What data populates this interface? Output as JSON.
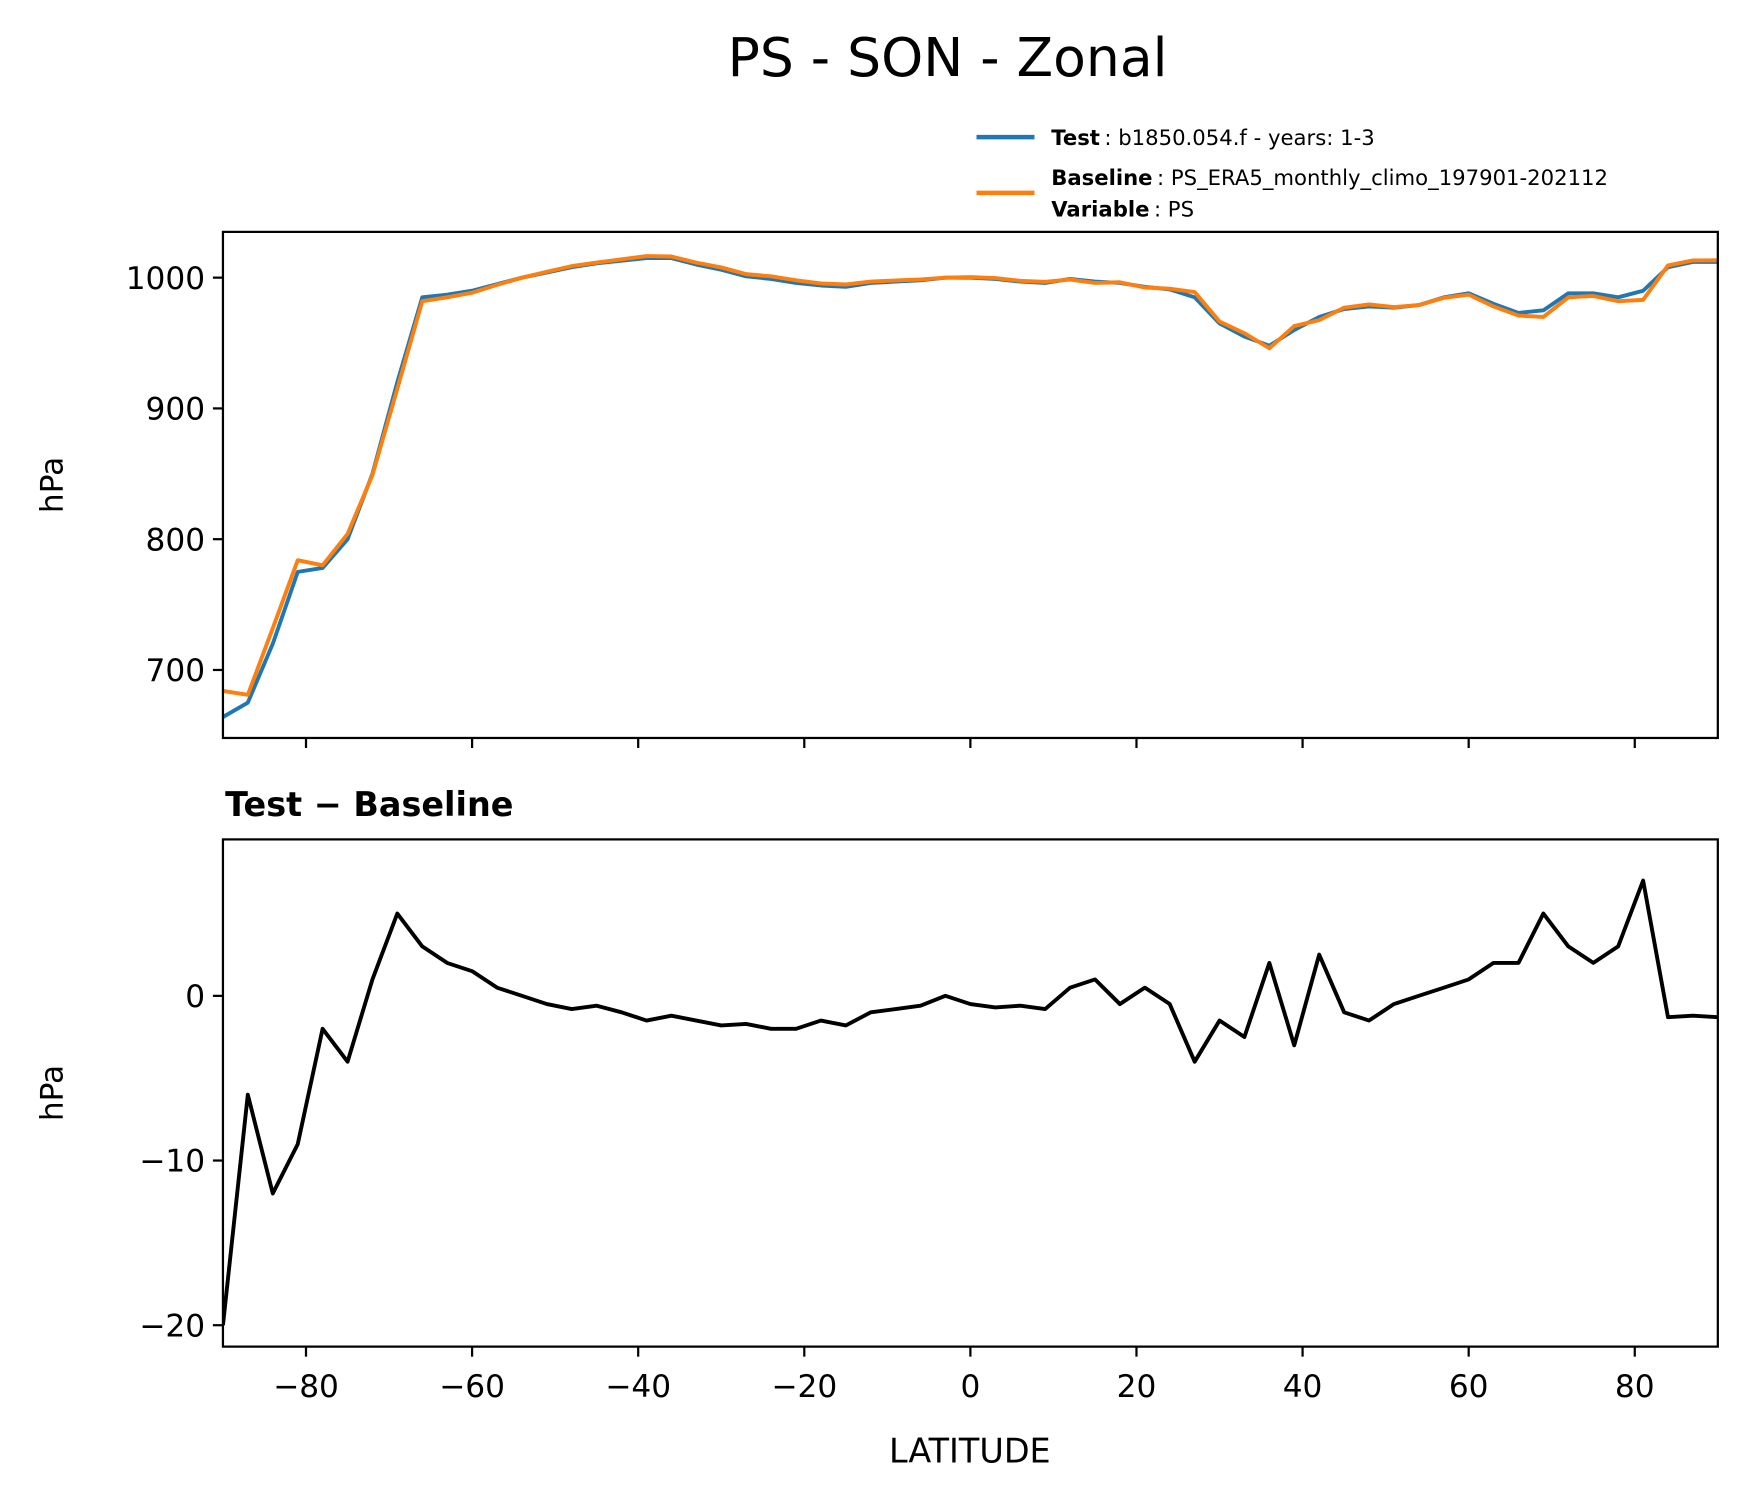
{
  "chart_data": [
    {
      "type": "line",
      "title": "PS - SON - Zonal",
      "ylabel": "hPa",
      "x": [
        -90,
        -87,
        -84,
        -81,
        -78,
        -75,
        -72,
        -69,
        -66,
        -63,
        -60,
        -57,
        -54,
        -51,
        -48,
        -45,
        -42,
        -39,
        -36,
        -33,
        -30,
        -27,
        -24,
        -21,
        -18,
        -15,
        -12,
        -9,
        -6,
        -3,
        0,
        3,
        6,
        9,
        12,
        15,
        18,
        21,
        24,
        27,
        30,
        33,
        36,
        39,
        42,
        45,
        48,
        51,
        54,
        57,
        60,
        63,
        66,
        69,
        72,
        75,
        78,
        81,
        84,
        87,
        90
      ],
      "series": [
        {
          "name": "Test",
          "description": ": b1850.054.f - years: 1-3",
          "color": "#1f77b4",
          "values": [
            664,
            675,
            720,
            775,
            778,
            800,
            850,
            920,
            985,
            987,
            990,
            995,
            1000,
            1004,
            1008,
            1011,
            1013,
            1015,
            1015,
            1010,
            1006,
            1001,
            999,
            996,
            994,
            993,
            996,
            997,
            998,
            1000,
            1000,
            999,
            997,
            996,
            999,
            997,
            996,
            993,
            991,
            985,
            965,
            955,
            948,
            960,
            970,
            976,
            978,
            977,
            979,
            985,
            988,
            980,
            973,
            975,
            988,
            988,
            985,
            990,
            1008,
            1012,
            1012
          ]
        },
        {
          "name": "Baseline",
          "description": ": PS_ERA5_monthly_climo_197901-202112",
          "color": "#ff7f0e",
          "values": [
            684,
            681,
            732,
            784,
            780,
            804,
            849,
            915,
            982,
            985,
            988.5,
            994.5,
            1000,
            1004.5,
            1008.8,
            1011.6,
            1014,
            1016.5,
            1016.2,
            1011.5,
            1007.8,
            1002.7,
            1001,
            998,
            995.5,
            994.8,
            997,
            997.8,
            998.6,
            1000,
            1000.5,
            999.7,
            997.6,
            996.8,
            998.5,
            996,
            996.5,
            992.5,
            991.5,
            989,
            966.5,
            957.5,
            946,
            963,
            967.5,
            977,
            979.5,
            977.5,
            979,
            984.5,
            987,
            978,
            971,
            970,
            985,
            986,
            982,
            983,
            1009.3,
            1013.2,
            1013.3
          ]
        }
      ],
      "legend_note": {
        "name": "Variable",
        "text": ": PS"
      },
      "xlim": [
        -90,
        90
      ],
      "xticks": [
        -80,
        -60,
        -40,
        -20,
        0,
        20,
        40,
        60,
        80
      ],
      "ylim": [
        648,
        1035
      ],
      "yticks": [
        700,
        800,
        900,
        1000
      ]
    },
    {
      "type": "line",
      "title": "Test − Baseline",
      "ylabel": "hPa",
      "xlabel": "LATITUDE",
      "x": [
        -90,
        -87,
        -84,
        -81,
        -78,
        -75,
        -72,
        -69,
        -66,
        -63,
        -60,
        -57,
        -54,
        -51,
        -48,
        -45,
        -42,
        -39,
        -36,
        -33,
        -30,
        -27,
        -24,
        -21,
        -18,
        -15,
        -12,
        -9,
        -6,
        -3,
        0,
        3,
        6,
        9,
        12,
        15,
        18,
        21,
        24,
        27,
        30,
        33,
        36,
        39,
        42,
        45,
        48,
        51,
        54,
        57,
        60,
        63,
        66,
        69,
        72,
        75,
        78,
        81,
        84,
        87,
        90
      ],
      "series": [
        {
          "color": "#000000",
          "values": [
            -20,
            -6,
            -12,
            -9,
            -2,
            -4,
            1,
            5,
            3,
            2,
            1.5,
            0.5,
            0,
            -0.5,
            -0.8,
            -0.6,
            -1,
            -1.5,
            -1.2,
            -1.5,
            -1.8,
            -1.7,
            -2,
            -2,
            -1.5,
            -1.8,
            -1,
            -0.8,
            -0.6,
            0,
            -0.5,
            -0.7,
            -0.6,
            -0.8,
            0.5,
            1,
            -0.5,
            0.5,
            -0.5,
            -4,
            -1.5,
            -2.5,
            2,
            -3,
            2.5,
            -1,
            -1.5,
            -0.5,
            0,
            0.5,
            1,
            2,
            2,
            5,
            3,
            2,
            3,
            7,
            -1.3,
            -1.2,
            -1.3
          ]
        }
      ],
      "xlim": [
        -90,
        90
      ],
      "xticks": [
        {
          "value": -80,
          "label": "−80"
        },
        {
          "value": -60,
          "label": "−60"
        },
        {
          "value": -40,
          "label": "−40"
        },
        {
          "value": -20,
          "label": "−20"
        },
        0,
        20,
        40,
        60,
        80
      ],
      "ylim": [
        -21.3,
        9.5
      ],
      "yticks": [
        {
          "value": -20,
          "label": "−20"
        },
        {
          "value": -10,
          "label": "−10"
        },
        0
      ]
    }
  ]
}
